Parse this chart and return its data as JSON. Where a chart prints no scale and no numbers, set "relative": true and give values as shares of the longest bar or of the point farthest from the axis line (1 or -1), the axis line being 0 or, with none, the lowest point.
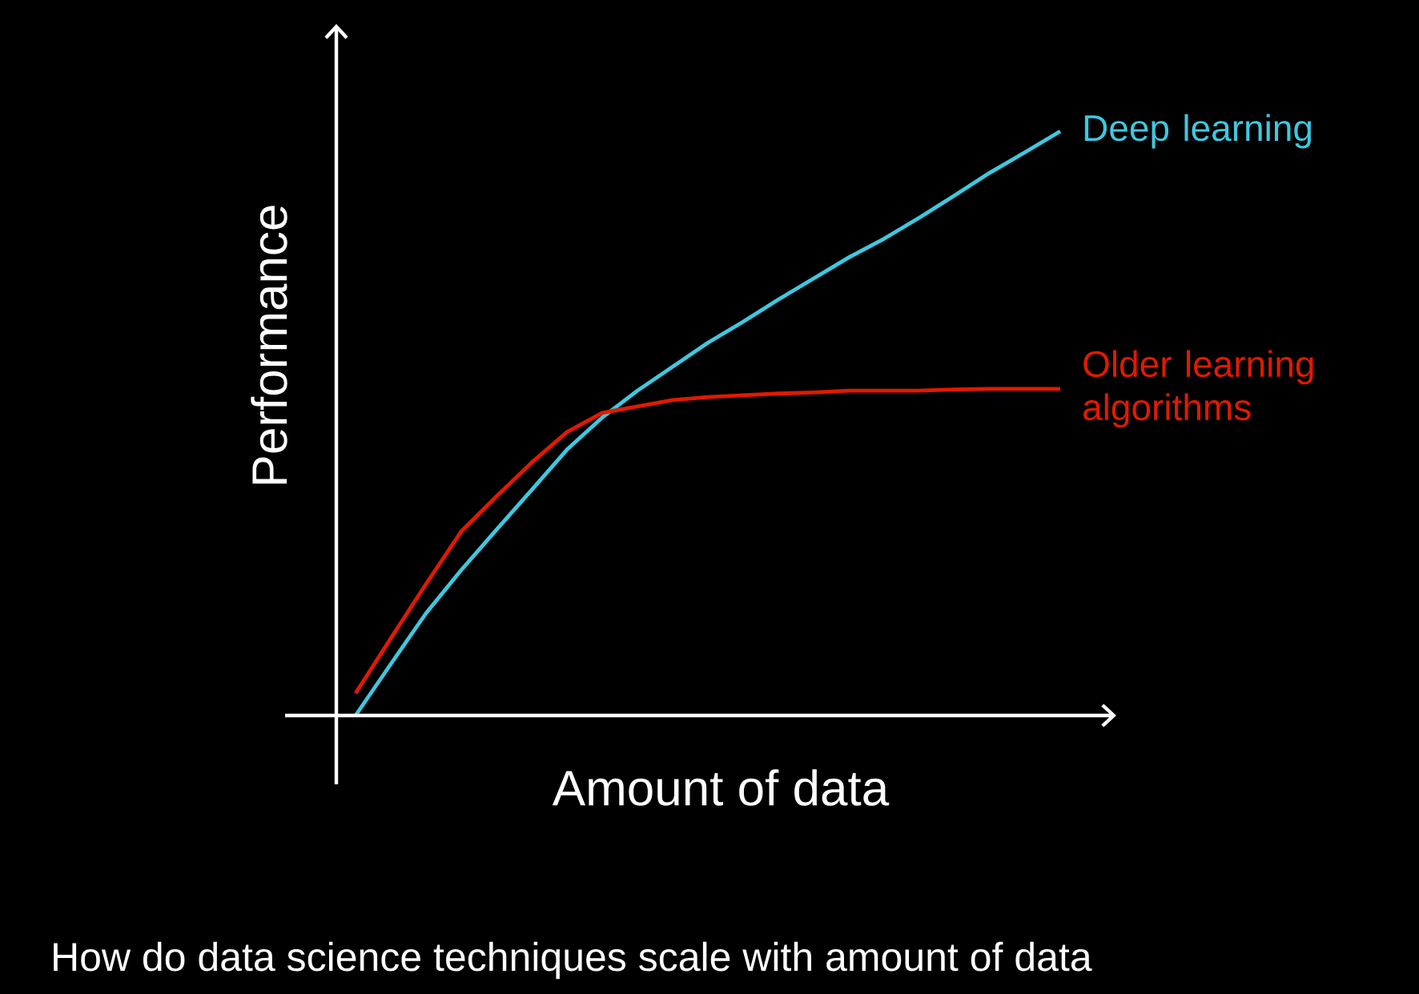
{
  "chart_data": {
    "type": "line",
    "relative": true,
    "xlabel": "Amount of data",
    "ylabel": "Performance",
    "annotations": [
      "How do data science techniques scale with amount of data"
    ],
    "categories": [
      null,
      null,
      null,
      null,
      null,
      null,
      null,
      null,
      null,
      null,
      null,
      null,
      null,
      null,
      null,
      null,
      null,
      null,
      null,
      null,
      null
    ],
    "series": [
      {
        "name": "Deep learning",
        "color": "#3ec8e0",
        "values": [
          0.0,
          0.088,
          0.175,
          0.249,
          0.318,
          0.386,
          0.455,
          0.51,
          0.556,
          0.597,
          0.638,
          0.674,
          0.712,
          0.748,
          0.784,
          0.816,
          0.852,
          0.89,
          0.929,
          0.964,
          1.0
        ]
      },
      {
        "name": "Older learning algorithms",
        "color": "#e01a00",
        "values": [
          0.038,
          0.132,
          0.225,
          0.315,
          0.375,
          0.433,
          0.485,
          0.518,
          0.529,
          0.54,
          0.545,
          0.548,
          0.551,
          0.553,
          0.556,
          0.556,
          0.556,
          0.558,
          0.559,
          0.559,
          0.559
        ]
      }
    ]
  }
}
